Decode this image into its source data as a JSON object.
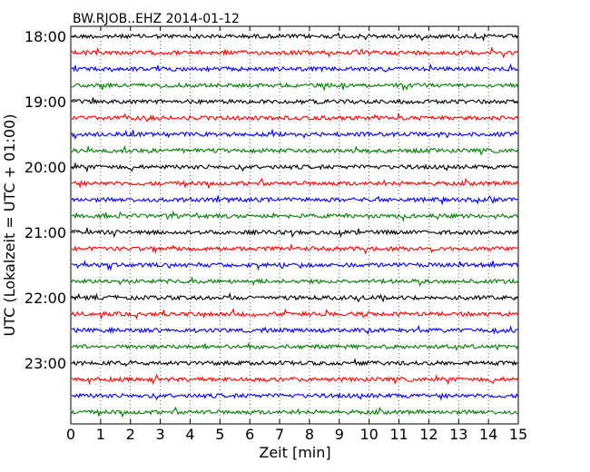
{
  "chart_data": {
    "type": "line",
    "title": "BW.RJOB..EHZ 2014-01-12",
    "xlabel": "Zeit  [min]",
    "ylabel": "UTC (Lokalzeit = UTC + 01:00)",
    "xlim": [
      0,
      15
    ],
    "x_ticks": [
      "0",
      "1",
      "2",
      "3",
      "4",
      "5",
      "6",
      "7",
      "8",
      "9",
      "10",
      "11",
      "12",
      "13",
      "14",
      "15"
    ],
    "y_tick_labels": [
      "18:00",
      "19:00",
      "20:00",
      "21:00",
      "22:00",
      "23:00"
    ],
    "trace_start": "18:00",
    "trace_interval_min": 15,
    "trace_count": 24,
    "trace_colors": [
      "#000000",
      "#ff0000",
      "#0000ff",
      "#008000"
    ],
    "grid": "vertical-dotted",
    "legend": "none"
  }
}
